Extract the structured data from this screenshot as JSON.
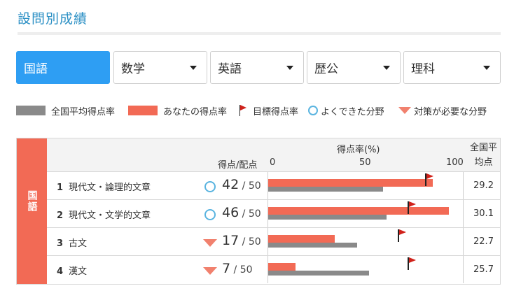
{
  "page_title": "設問別成績",
  "tabs": [
    {
      "label": "国語",
      "active": true
    },
    {
      "label": "数学",
      "active": false
    },
    {
      "label": "英語",
      "active": false
    },
    {
      "label": "歴公",
      "active": false
    },
    {
      "label": "理科",
      "active": false
    }
  ],
  "legend": {
    "national_avg": "全国平均得点率",
    "your_score": "あなたの得点率",
    "target": "目標得点率",
    "good": "よくできた分野",
    "needs_work": "対策が必要な分野"
  },
  "table": {
    "subject": "国語",
    "score_header": "得点/配点",
    "rate_header": "得点率(%)",
    "ticks": [
      "0",
      "50",
      "100"
    ],
    "avg_header": "全国平均点",
    "colors": {
      "your_bar": "#f26a55",
      "avg_bar": "#8a8a8a",
      "flag": "#d0221b",
      "good": "#5ab4e0",
      "needs": "#f1816e"
    },
    "rows": [
      {
        "num": "1",
        "label": "現代文・論理的文章",
        "mark": "good",
        "score": "42",
        "denom": "50",
        "your_rate": 84,
        "avg_rate": 58.4,
        "target_rate": 80,
        "national_avg": "29.2"
      },
      {
        "num": "2",
        "label": "現代文・文学的文章",
        "mark": "good",
        "score": "46",
        "denom": "50",
        "your_rate": 92,
        "avg_rate": 60.2,
        "target_rate": 71,
        "national_avg": "30.1"
      },
      {
        "num": "3",
        "label": "古文",
        "mark": "needs",
        "score": "17",
        "denom": "50",
        "your_rate": 34,
        "avg_rate": 45.4,
        "target_rate": 66,
        "national_avg": "22.7"
      },
      {
        "num": "4",
        "label": "漢文",
        "mark": "needs",
        "score": "7",
        "denom": "50",
        "your_rate": 14,
        "avg_rate": 51.4,
        "target_rate": 71,
        "national_avg": "25.7"
      }
    ]
  }
}
